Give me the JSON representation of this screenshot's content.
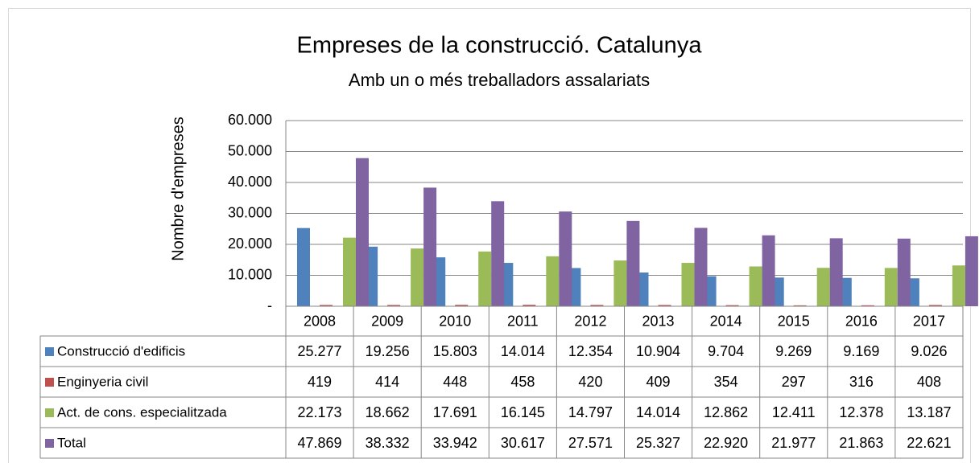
{
  "chart_data": {
    "type": "bar",
    "title": "Empreses de la construcció. Catalunya",
    "subtitle": "Amb un o més treballadors assalariats",
    "y_label": "Nombre d'empreses",
    "categories": [
      "2008",
      "2009",
      "2010",
      "2011",
      "2012",
      "2013",
      "2014",
      "2015",
      "2016",
      "2017"
    ],
    "series": [
      {
        "name": "Construcció d'edificis",
        "color": "#4f81bd",
        "values": [
          25277,
          19256,
          15803,
          14014,
          12354,
          10904,
          9704,
          9269,
          9169,
          9026
        ],
        "value_labels": [
          "25.277",
          "19.256",
          "15.803",
          "14.014",
          "12.354",
          "10.904",
          "9.704",
          "9.269",
          "9.169",
          "9.026"
        ]
      },
      {
        "name": "Enginyeria civil",
        "color": "#c0504d",
        "values": [
          419,
          414,
          448,
          458,
          420,
          409,
          354,
          297,
          316,
          408
        ],
        "value_labels": [
          "419",
          "414",
          "448",
          "458",
          "420",
          "409",
          "354",
          "297",
          "316",
          "408"
        ]
      },
      {
        "name": "Act. de cons. especialitzada",
        "color": "#9bbb59",
        "values": [
          22173,
          18662,
          17691,
          16145,
          14797,
          14014,
          12862,
          12411,
          12378,
          13187
        ],
        "value_labels": [
          "22.173",
          "18.662",
          "17.691",
          "16.145",
          "14.797",
          "14.014",
          "12.862",
          "12.411",
          "12.378",
          "13.187"
        ]
      },
      {
        "name": "Total",
        "color": "#8064a2",
        "values": [
          47869,
          38332,
          33942,
          30617,
          27571,
          25327,
          22920,
          21977,
          21863,
          22621
        ],
        "value_labels": [
          "47.869",
          "38.332",
          "33.942",
          "30.617",
          "27.571",
          "25.327",
          "22.920",
          "21.977",
          "21.863",
          "22.621"
        ]
      }
    ],
    "ylim": [
      0,
      60000
    ],
    "yticks": [
      {
        "value": 0,
        "label": "-"
      },
      {
        "value": 10000,
        "label": "10.000"
      },
      {
        "value": 20000,
        "label": "20.000"
      },
      {
        "value": 30000,
        "label": "30.000"
      },
      {
        "value": 40000,
        "label": "40.000"
      },
      {
        "value": 50000,
        "label": "50.000"
      },
      {
        "value": 60000,
        "label": "60.000"
      }
    ],
    "grid": true
  }
}
